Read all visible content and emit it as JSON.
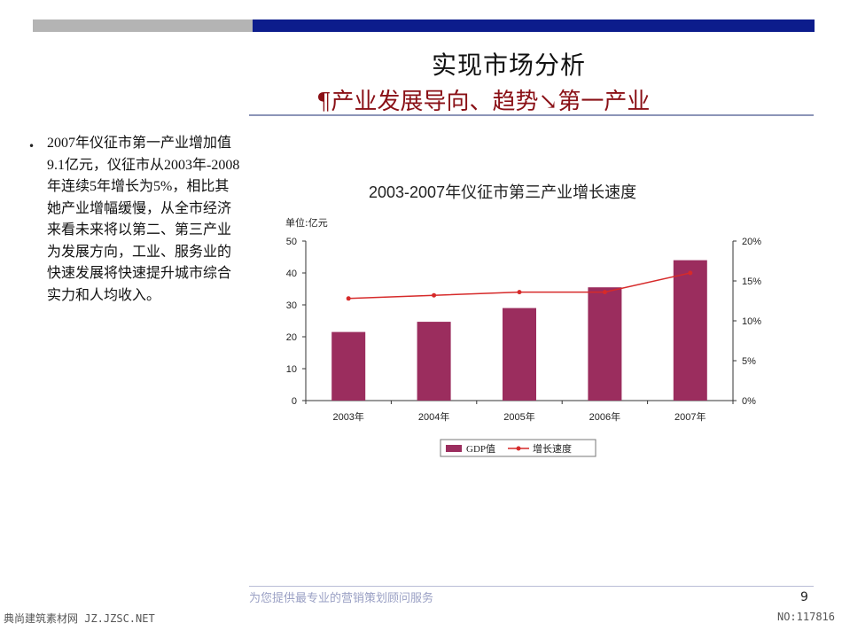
{
  "slide": {
    "title": "实现市场分析",
    "subtitle": "¶产业发展导向、趋势↘第一产业",
    "bullet": "2007年仪征市第一产业增加值9.1亿元，仪征市从2003年-2008年连续5年增长为5%，相比其她产业增幅缓慢，从全市经济来看未来将以第二、第三产业为发展方向，工业、服务业的快速发展将快速提升城市综合实力和人均收入。",
    "footer_slogan": "为您提供最专业的营销策划顾问服务",
    "page_number": "9"
  },
  "watermark": {
    "left": "典尚建筑素材网 JZ.JZSC.NET",
    "right": "NO:117816"
  },
  "chart_data": {
    "type": "bar",
    "title": "2003-2007年仪征市第三产业增长速度",
    "unit_label": "单位:亿元",
    "categories": [
      "2003年",
      "2004年",
      "2005年",
      "2006年",
      "2007年"
    ],
    "ylim": [
      0,
      50
    ],
    "yticks": [
      "0",
      "10",
      "20",
      "30",
      "40",
      "50"
    ],
    "y2lim": [
      0,
      20
    ],
    "y2ticks": [
      "0%",
      "5%",
      "10%",
      "15%",
      "20%"
    ],
    "series": [
      {
        "name": "GDP值",
        "type": "bar",
        "axis": "left",
        "values": [
          21.5,
          24.7,
          29,
          35.5,
          44
        ],
        "color": "#9b2d5e"
      },
      {
        "name": "增长速度",
        "type": "line",
        "axis": "right",
        "values": [
          12.8,
          13.2,
          13.6,
          13.6,
          16
        ],
        "color": "#d62a2a"
      }
    ],
    "grid": false,
    "legend_position": "bottom"
  }
}
